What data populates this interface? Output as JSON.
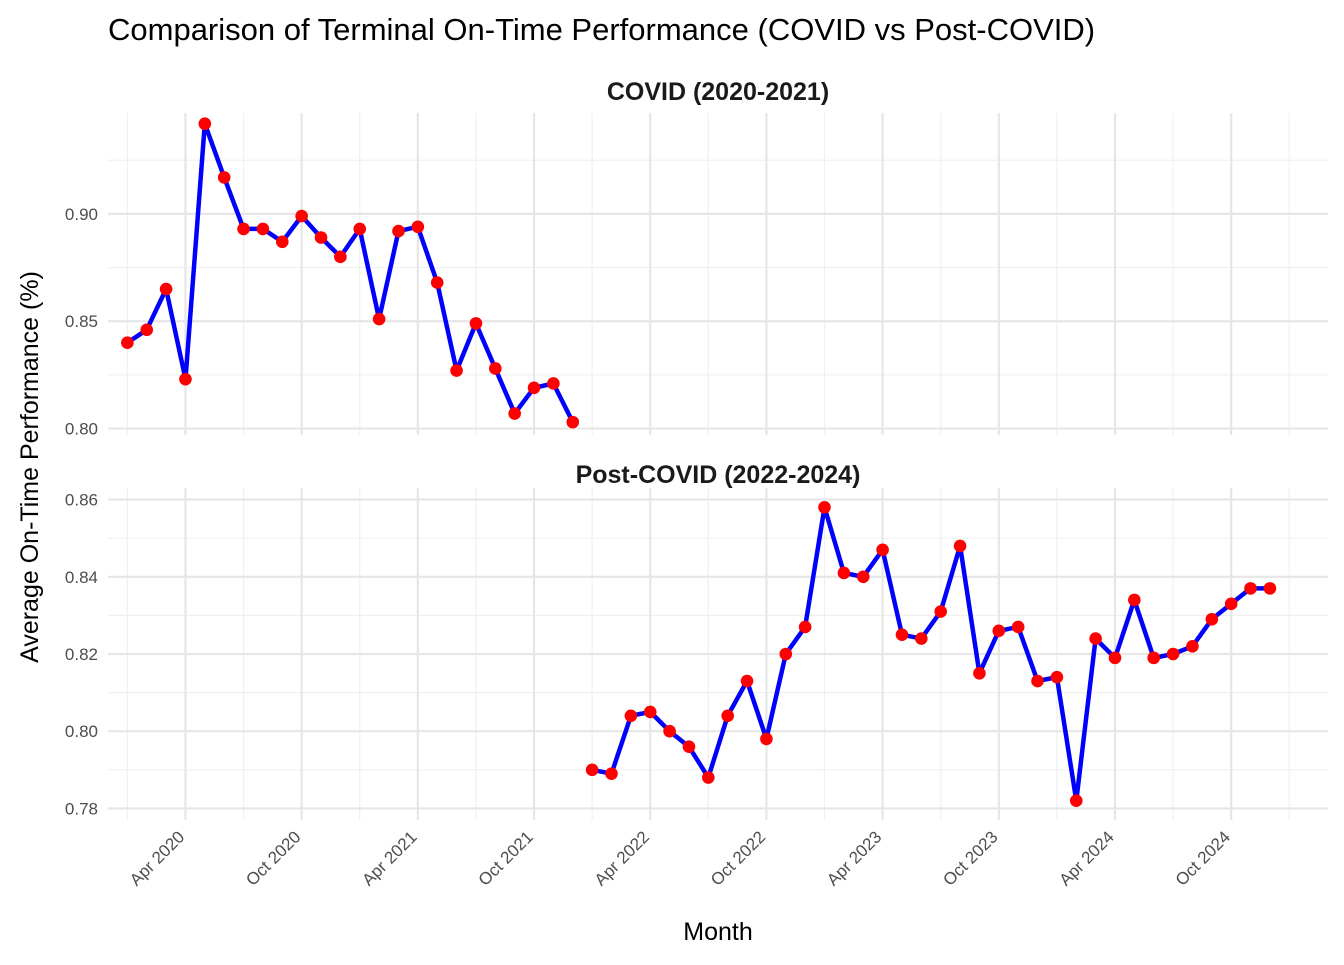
{
  "chart_data": {
    "type": "line",
    "title": "Comparison of Terminal On-Time Performance (COVID vs Post-COVID)",
    "xlabel": "Month",
    "ylabel": "Average On-Time Performance (%)",
    "x_tick_labels": [
      "Apr 2020",
      "Oct 2020",
      "Apr 2021",
      "Oct 2021",
      "Apr 2022",
      "Oct 2022",
      "Apr 2023",
      "Oct 2023",
      "Apr 2024",
      "Oct 2024"
    ],
    "x_tick_dates": [
      "2020-04",
      "2020-10",
      "2021-04",
      "2021-10",
      "2022-04",
      "2022-10",
      "2023-04",
      "2023-10",
      "2024-04",
      "2024-10"
    ],
    "xlim": [
      "2019-12",
      "2025-03"
    ],
    "grid": true,
    "colors": {
      "line": "#0000ff",
      "point": "#ff0000"
    },
    "panels": [
      {
        "strip_title": "COVID (2020-2021)",
        "ylim": [
          0.797,
          0.947
        ],
        "y_ticks": [
          0.8,
          0.85,
          0.9
        ],
        "y_tick_labels": [
          "0.80",
          "0.85",
          "0.90"
        ],
        "series": [
          {
            "x": [
              "2020-01",
              "2020-02",
              "2020-03",
              "2020-04",
              "2020-05",
              "2020-06",
              "2020-07",
              "2020-08",
              "2020-09",
              "2020-10",
              "2020-11",
              "2020-12",
              "2021-01",
              "2021-02",
              "2021-03",
              "2021-04",
              "2021-05",
              "2021-06",
              "2021-07",
              "2021-08",
              "2021-09",
              "2021-10",
              "2021-11",
              "2021-12"
            ],
            "values": [
              0.84,
              0.846,
              0.865,
              0.823,
              0.942,
              0.917,
              0.893,
              0.893,
              0.887,
              0.899,
              0.889,
              0.88,
              0.893,
              0.851,
              0.892,
              0.894,
              0.868,
              0.827,
              0.849,
              0.828,
              0.807,
              0.819,
              0.821,
              0.803
            ]
          }
        ]
      },
      {
        "strip_title": "Post-COVID (2022-2024)",
        "ylim": [
          0.777,
          0.863
        ],
        "y_ticks": [
          0.78,
          0.8,
          0.82,
          0.84,
          0.86
        ],
        "y_tick_labels": [
          "0.78",
          "0.80",
          "0.82",
          "0.84",
          "0.86"
        ],
        "series": [
          {
            "x": [
              "2022-01",
              "2022-02",
              "2022-03",
              "2022-04",
              "2022-05",
              "2022-06",
              "2022-07",
              "2022-08",
              "2022-09",
              "2022-10",
              "2022-11",
              "2022-12",
              "2023-01",
              "2023-02",
              "2023-03",
              "2023-04",
              "2023-05",
              "2023-06",
              "2023-07",
              "2023-08",
              "2023-09",
              "2023-10",
              "2023-11",
              "2023-12",
              "2024-01",
              "2024-02",
              "2024-03",
              "2024-04",
              "2024-05",
              "2024-06",
              "2024-07",
              "2024-08",
              "2024-09",
              "2024-10",
              "2024-11",
              "2024-12"
            ],
            "values": [
              0.79,
              0.789,
              0.804,
              0.805,
              0.8,
              0.796,
              0.788,
              0.804,
              0.813,
              0.798,
              0.82,
              0.827,
              0.858,
              0.841,
              0.84,
              0.847,
              0.825,
              0.824,
              0.831,
              0.848,
              0.815,
              0.826,
              0.827,
              0.813,
              0.814,
              0.782,
              0.824,
              0.819,
              0.834,
              0.819,
              0.82,
              0.822,
              0.829,
              0.833,
              0.837,
              0.837
            ]
          }
        ]
      }
    ]
  }
}
